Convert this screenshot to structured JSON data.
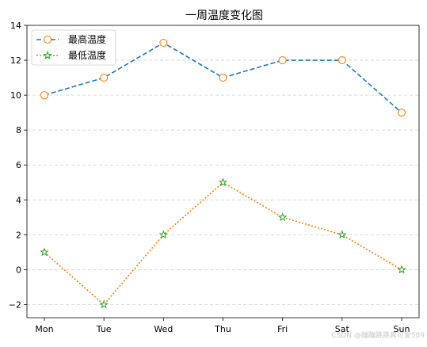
{
  "chart_data": {
    "type": "line",
    "title": "一周温度变化图",
    "xlabel": "",
    "ylabel": "",
    "categories": [
      "Mon",
      "Tue",
      "Wed",
      "Thu",
      "Fri",
      "Sat",
      "Sun"
    ],
    "ylim": [
      -2.75,
      14
    ],
    "yticks": [
      -2,
      0,
      2,
      4,
      6,
      8,
      10,
      12,
      14
    ],
    "grid": "horizontal-dashed",
    "legend_position": "top-left",
    "series": [
      {
        "name": "最高温度",
        "values": [
          10,
          11,
          13,
          11,
          12,
          12,
          9
        ],
        "line_color": "#1f77b4",
        "marker_color": "#ff7f0e",
        "line_style": "dashed",
        "marker": "circle"
      },
      {
        "name": "最低温度",
        "values": [
          1,
          -2,
          2,
          5,
          3,
          2,
          0
        ],
        "line_color": "#ff7f0e",
        "marker_color": "#2ca02c",
        "line_style": "dotted",
        "marker": "star"
      }
    ]
  },
  "watermark": "CSDN @蹦蹦跳跳真可爱589"
}
